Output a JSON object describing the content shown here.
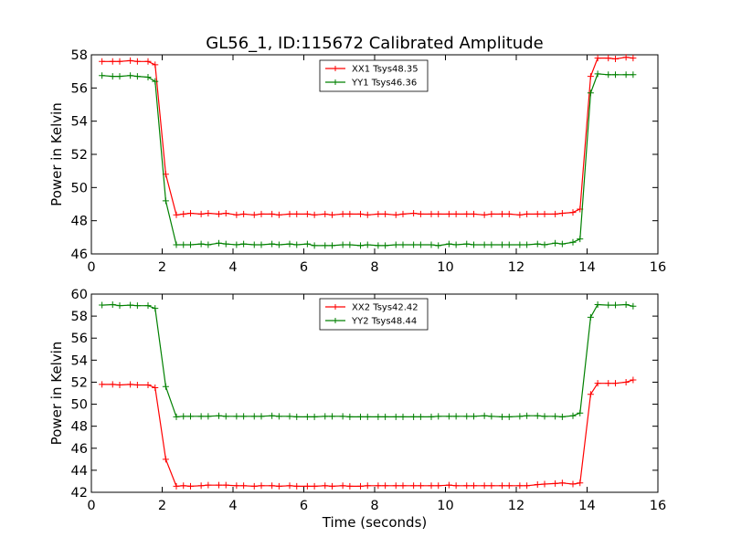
{
  "chart_data": [
    {
      "type": "line",
      "title": "GL56_1, ID:115672 Calibrated Amplitude",
      "xlabel": "",
      "ylabel": "Power in Kelvin",
      "xlim": [
        0,
        16
      ],
      "ylim": [
        46,
        58
      ],
      "xticks": [
        0,
        2,
        4,
        6,
        8,
        10,
        12,
        14,
        16
      ],
      "yticks": [
        46,
        48,
        50,
        52,
        54,
        56,
        58
      ],
      "grid": false,
      "legend": "top-center",
      "x": [
        0.3,
        0.6,
        0.8,
        1.1,
        1.3,
        1.6,
        1.8,
        2.1,
        2.4,
        2.6,
        2.8,
        3.1,
        3.3,
        3.6,
        3.8,
        4.1,
        4.3,
        4.6,
        4.8,
        5.1,
        5.3,
        5.6,
        5.8,
        6.1,
        6.3,
        6.6,
        6.8,
        7.1,
        7.3,
        7.6,
        7.8,
        8.1,
        8.3,
        8.6,
        8.8,
        9.1,
        9.3,
        9.6,
        9.8,
        10.1,
        10.3,
        10.6,
        10.8,
        11.1,
        11.3,
        11.6,
        11.8,
        12.1,
        12.3,
        12.6,
        12.8,
        13.1,
        13.3,
        13.6,
        13.8,
        14.1,
        14.3,
        14.6,
        14.8,
        15.1,
        15.3
      ],
      "series": [
        {
          "name": "XX1 Tsys48.35",
          "color": "#ff0000",
          "values": [
            57.6,
            57.6,
            57.6,
            57.65,
            57.6,
            57.6,
            57.4,
            50.8,
            48.35,
            48.4,
            48.45,
            48.4,
            48.45,
            48.4,
            48.45,
            48.35,
            48.4,
            48.35,
            48.4,
            48.4,
            48.35,
            48.4,
            48.4,
            48.4,
            48.35,
            48.4,
            48.35,
            48.4,
            48.4,
            48.4,
            48.35,
            48.4,
            48.4,
            48.35,
            48.4,
            48.45,
            48.4,
            48.4,
            48.4,
            48.4,
            48.4,
            48.4,
            48.4,
            48.35,
            48.4,
            48.4,
            48.4,
            48.35,
            48.4,
            48.4,
            48.4,
            48.4,
            48.45,
            48.5,
            48.7,
            56.7,
            57.8,
            57.8,
            57.75,
            57.85,
            57.8
          ]
        },
        {
          "name": "YY1 Tsys46.36",
          "color": "#008000",
          "values": [
            56.75,
            56.7,
            56.7,
            56.75,
            56.7,
            56.65,
            56.4,
            49.2,
            46.55,
            46.55,
            46.55,
            46.6,
            46.55,
            46.65,
            46.6,
            46.55,
            46.6,
            46.55,
            46.55,
            46.6,
            46.55,
            46.6,
            46.55,
            46.6,
            46.5,
            46.5,
            46.5,
            46.55,
            46.55,
            46.5,
            46.55,
            46.5,
            46.5,
            46.55,
            46.55,
            46.55,
            46.55,
            46.55,
            46.5,
            46.6,
            46.55,
            46.6,
            46.55,
            46.55,
            46.55,
            46.55,
            46.55,
            46.55,
            46.55,
            46.6,
            46.55,
            46.65,
            46.6,
            46.7,
            46.9,
            55.7,
            56.85,
            56.8,
            56.8,
            56.8,
            56.8
          ]
        }
      ]
    },
    {
      "type": "line",
      "title": "",
      "xlabel": "Time (seconds)",
      "ylabel": "Power in Kelvin",
      "xlim": [
        0,
        16
      ],
      "ylim": [
        42,
        60
      ],
      "xticks": [
        0,
        2,
        4,
        6,
        8,
        10,
        12,
        14,
        16
      ],
      "yticks": [
        42,
        44,
        46,
        48,
        50,
        52,
        54,
        56,
        58,
        60
      ],
      "grid": false,
      "legend": "top-center",
      "x": [
        0.3,
        0.6,
        0.8,
        1.1,
        1.3,
        1.6,
        1.8,
        2.1,
        2.4,
        2.6,
        2.8,
        3.1,
        3.3,
        3.6,
        3.8,
        4.1,
        4.3,
        4.6,
        4.8,
        5.1,
        5.3,
        5.6,
        5.8,
        6.1,
        6.3,
        6.6,
        6.8,
        7.1,
        7.3,
        7.6,
        7.8,
        8.1,
        8.3,
        8.6,
        8.8,
        9.1,
        9.3,
        9.6,
        9.8,
        10.1,
        10.3,
        10.6,
        10.8,
        11.1,
        11.3,
        11.6,
        11.8,
        12.1,
        12.3,
        12.6,
        12.8,
        13.1,
        13.3,
        13.6,
        13.8,
        14.1,
        14.3,
        14.6,
        14.8,
        15.1,
        15.3
      ],
      "series": [
        {
          "name": "XX2 Tsys42.42",
          "color": "#ff0000",
          "values": [
            51.8,
            51.8,
            51.75,
            51.8,
            51.75,
            51.75,
            51.5,
            45.0,
            42.55,
            42.6,
            42.55,
            42.6,
            42.65,
            42.65,
            42.65,
            42.6,
            42.6,
            42.55,
            42.6,
            42.6,
            42.55,
            42.6,
            42.55,
            42.55,
            42.55,
            42.6,
            42.55,
            42.6,
            42.55,
            42.55,
            42.6,
            42.6,
            42.6,
            42.6,
            42.6,
            42.6,
            42.6,
            42.6,
            42.6,
            42.65,
            42.6,
            42.6,
            42.6,
            42.6,
            42.6,
            42.6,
            42.6,
            42.6,
            42.6,
            42.7,
            42.75,
            42.8,
            42.85,
            42.75,
            42.85,
            50.9,
            51.9,
            51.9,
            51.9,
            52.0,
            52.2
          ]
        },
        {
          "name": "YY2 Tsys48.44",
          "color": "#008000",
          "values": [
            59.0,
            59.05,
            58.95,
            59.0,
            58.95,
            58.95,
            58.7,
            51.6,
            48.85,
            48.9,
            48.9,
            48.9,
            48.9,
            48.95,
            48.9,
            48.9,
            48.9,
            48.9,
            48.9,
            48.95,
            48.9,
            48.9,
            48.85,
            48.85,
            48.85,
            48.9,
            48.9,
            48.9,
            48.85,
            48.85,
            48.85,
            48.85,
            48.85,
            48.85,
            48.85,
            48.85,
            48.85,
            48.85,
            48.9,
            48.9,
            48.9,
            48.9,
            48.9,
            48.95,
            48.9,
            48.85,
            48.85,
            48.9,
            48.95,
            48.95,
            48.9,
            48.9,
            48.85,
            48.95,
            49.2,
            57.9,
            59.05,
            59.0,
            59.0,
            59.05,
            58.9
          ]
        }
      ]
    }
  ]
}
